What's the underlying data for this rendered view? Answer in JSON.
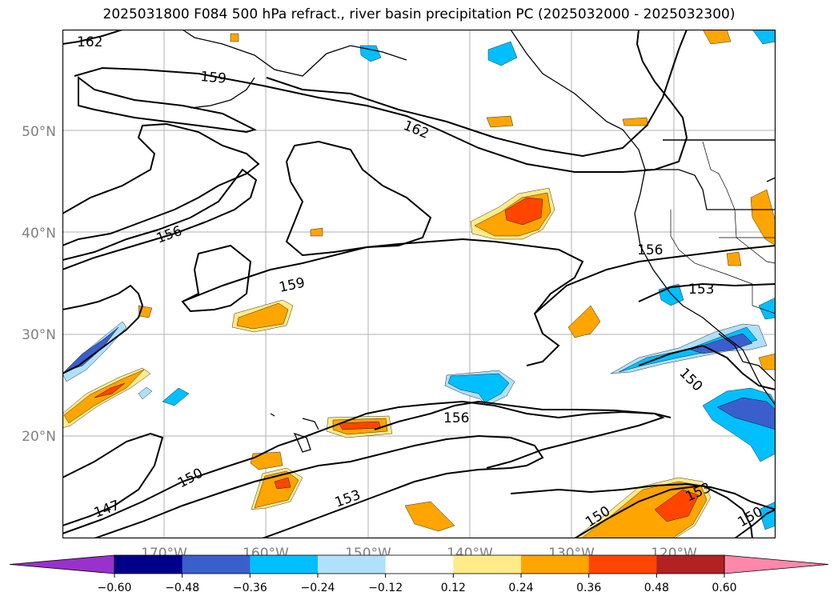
{
  "title": "2025031800 F084 500 hPa refract., river basin precipitation PC (2025032000 - 2025032300)",
  "map": {
    "lat_ticks": [
      "50°N",
      "40°N",
      "30°N",
      "20°N"
    ],
    "lon_ticks": [
      "170°W",
      "160°W",
      "150°W",
      "140°W",
      "130°W",
      "120°W"
    ],
    "axis_label_color": "#808080",
    "gridline_color": "#b0b0b0"
  },
  "contours": {
    "color": "#000000",
    "labels": [
      "162",
      "159",
      "162",
      "156",
      "159",
      "156",
      "153",
      "150",
      "156",
      "150",
      "153",
      "147",
      "150",
      "153",
      "150"
    ]
  },
  "colorbar": {
    "tick_labels": [
      "−0.60",
      "−0.48",
      "−0.36",
      "−0.24",
      "−0.12",
      "0.12",
      "0.24",
      "0.36",
      "0.48",
      "0.60"
    ],
    "colors": [
      "#9932cc",
      "#00008b",
      "#3a5fcd",
      "#00bfff",
      "#b0e0fa",
      "#ffffff",
      "#ffeb8a",
      "#ffa500",
      "#ff4500",
      "#b22222",
      "#ff88aa"
    ]
  },
  "fill_colors": {
    "neg_light": "#b0e0fa",
    "neg_mid": "#00bfff",
    "neg_strong": "#3a5fcd",
    "pos_light": "#ffeb8a",
    "pos_mid": "#ffa500",
    "pos_strong": "#ff4500"
  }
}
